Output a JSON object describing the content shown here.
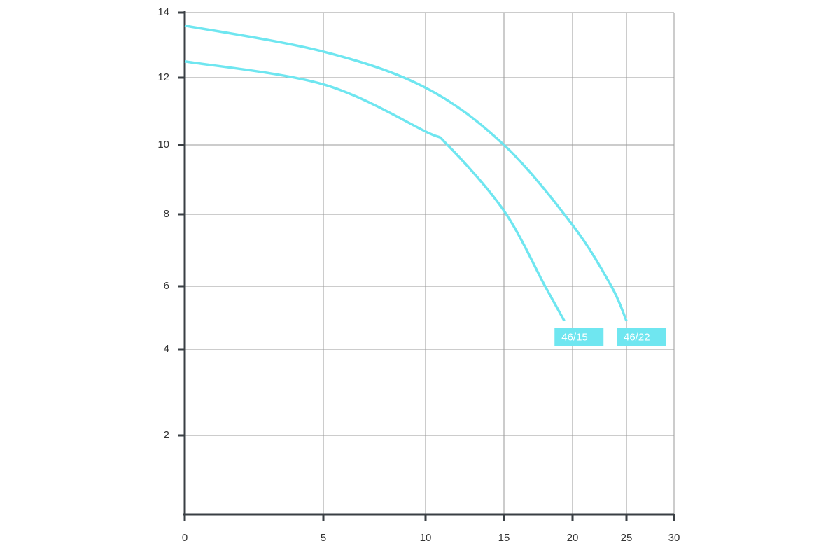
{
  "chart_data": {
    "type": "line",
    "series": [
      {
        "name": "46/15",
        "color": "#6fe6f0",
        "x": [
          0,
          5,
          10,
          11.4,
          15,
          18,
          19.4
        ],
        "values": [
          12.5,
          11.8,
          10.4,
          10,
          8.1,
          6,
          4.9
        ]
      },
      {
        "name": "46/22",
        "color": "#6fe6f0",
        "x": [
          0,
          5,
          10,
          15,
          20,
          23.6,
          25
        ],
        "values": [
          13.6,
          12.8,
          11.7,
          10,
          7.7,
          6,
          4.9
        ]
      }
    ],
    "xlim": [
      0,
      30
    ],
    "xticks": [
      0,
      5,
      10,
      15,
      20,
      25,
      30
    ],
    "ylim": [
      0,
      14
    ],
    "yticks": [
      2,
      4,
      6,
      8,
      10,
      12,
      14
    ],
    "grid": true
  }
}
